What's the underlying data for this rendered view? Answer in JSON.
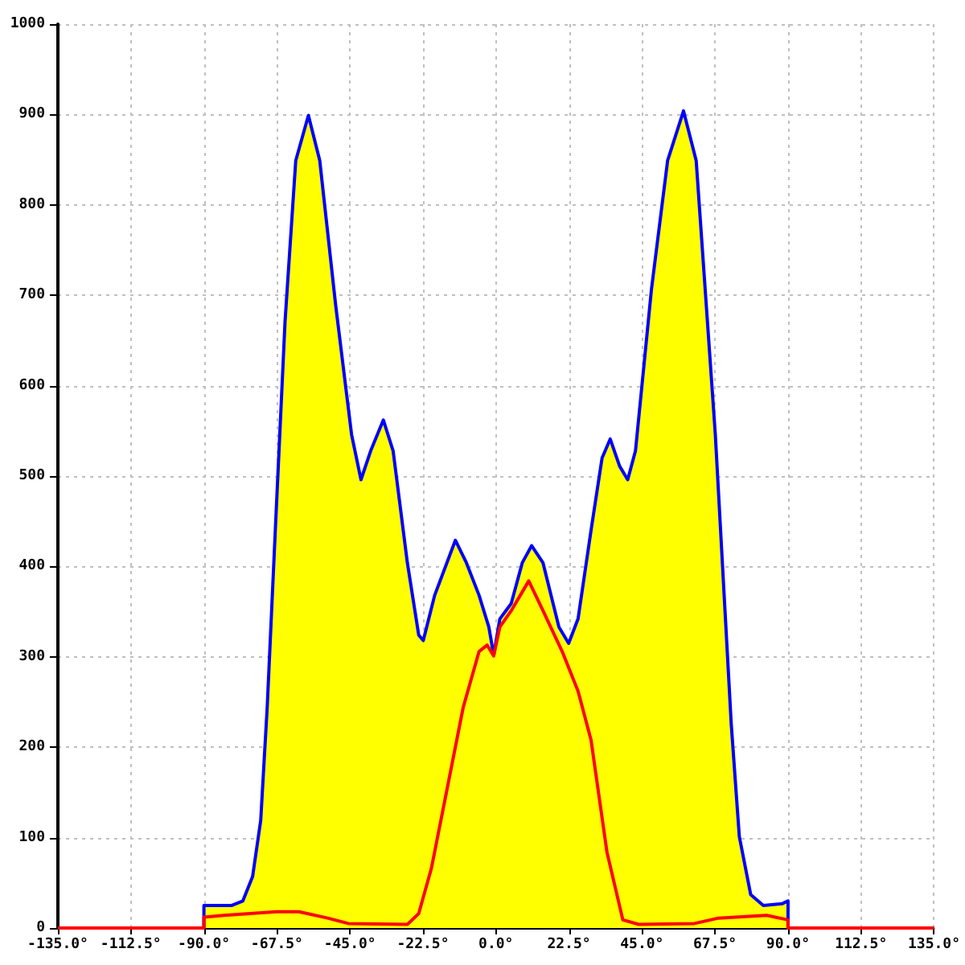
{
  "chart_data": {
    "type": "area",
    "xlim": [
      -135,
      135
    ],
    "ylim": [
      0,
      1000
    ],
    "xticks": [
      {
        "value": -135,
        "label": "-135.0°"
      },
      {
        "value": -112.5,
        "label": "-112.5°"
      },
      {
        "value": -90,
        "label": "-90.0°"
      },
      {
        "value": -67.5,
        "label": "-67.5°"
      },
      {
        "value": -45,
        "label": "-45.0°"
      },
      {
        "value": -22.5,
        "label": "-22.5°"
      },
      {
        "value": 0,
        "label": "0.0°"
      },
      {
        "value": 22.5,
        "label": "22.5°"
      },
      {
        "value": 45,
        "label": "45.0°"
      },
      {
        "value": 67.5,
        "label": "67.5°"
      },
      {
        "value": 90,
        "label": "90.0°"
      },
      {
        "value": 112.5,
        "label": "112.5°"
      },
      {
        "value": 135,
        "label": "135.0°"
      }
    ],
    "yticks": [
      0,
      100,
      200,
      300,
      400,
      500,
      600,
      700,
      800,
      900,
      1000
    ],
    "grid": true,
    "line_style": "solid",
    "marker": "none",
    "series": [
      {
        "color": "#ffff00",
        "x": [
          -135,
          -90,
          -90,
          -81.4,
          -78,
          -75,
          -72.5,
          -70.5,
          -68,
          -65,
          -61.7,
          -57.8,
          -54.3,
          -49.4,
          -44.5,
          -41.6,
          -38.6,
          -34.7,
          -31.7,
          -27.3,
          -23.8,
          -22.4,
          -18.9,
          -12.5,
          -9.1,
          -5.2,
          -2.2,
          -0.7,
          1.2,
          4.7,
          8.1,
          11,
          14.5,
          19.4,
          22.4,
          25.3,
          29.3,
          32.7,
          35.2,
          38.1,
          40.6,
          43,
          47.9,
          52.9,
          57.8,
          61.7,
          67.6,
          72.5,
          75,
          78.5,
          82.4,
          88.3,
          90,
          90,
          135
        ],
        "values": [
          0,
          0,
          25,
          25,
          30,
          57,
          119,
          244,
          440,
          671,
          849,
          899,
          849,
          689,
          546,
          496,
          528,
          562,
          528,
          404,
          324,
          318,
          368,
          429,
          404,
          368,
          333,
          302,
          342,
          359,
          404,
          423,
          404,
          333,
          315,
          342,
          440,
          520,
          541,
          511,
          496,
          528,
          706,
          849,
          904,
          849,
          546,
          226,
          101,
          37,
          25,
          27,
          30,
          0,
          0
        ]
      },
      {
        "type": "line",
        "color": "#ff0000",
        "x": [
          -135,
          -90,
          -90,
          -83.8,
          -67.6,
          -60.7,
          -51.9,
          -45.5,
          -27.3,
          -23.8,
          -19.9,
          -15,
          -10.1,
          -5.2,
          -2.7,
          -0.7,
          1.2,
          4.7,
          10.1,
          14.5,
          20.4,
          25.3,
          29.3,
          34.2,
          39.1,
          44,
          61.2,
          68.6,
          83.4,
          90,
          90,
          135
        ],
        "values": [
          0,
          0,
          12,
          14,
          18,
          18,
          11,
          5,
          4,
          16,
          66,
          155,
          244,
          306,
          313,
          301,
          333,
          351,
          384,
          351,
          306,
          262,
          208,
          84,
          9,
          4,
          5,
          11,
          14,
          9,
          0,
          0
        ]
      }
    ]
  }
}
